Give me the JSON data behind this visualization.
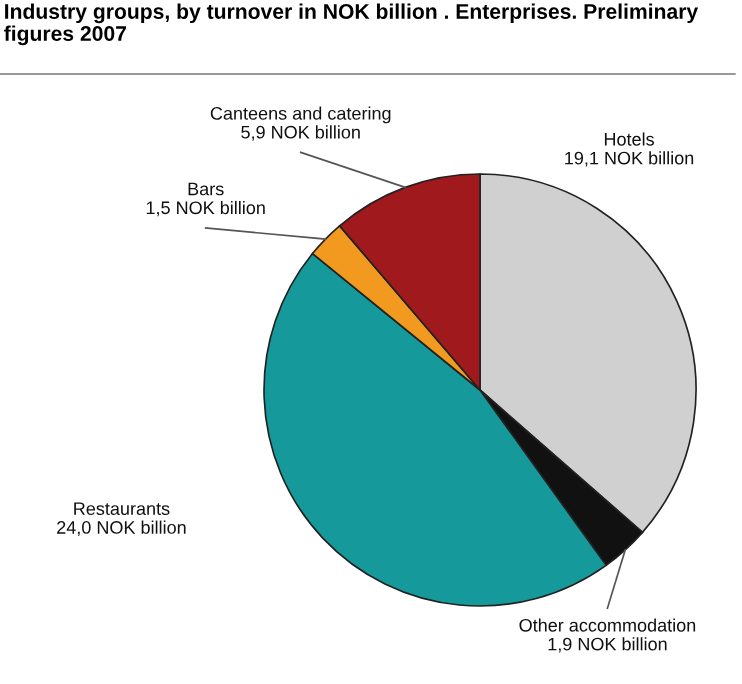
{
  "chart_data": {
    "type": "pie",
    "title": "Industry groups, by turnover in NOK billion . Enterprises. Preliminary figures 2007",
    "categories": [
      "Hotels",
      "Other accommodation",
      "Restaurants",
      "Bars",
      "Canteens and catering"
    ],
    "values": [
      19.1,
      1.9,
      24.0,
      1.5,
      5.9
    ],
    "value_labels": [
      "19,1 NOK billion",
      "1,9 NOK billion",
      "24,0 NOK billion",
      "1,5 NOK billion",
      "5,9 NOK billion"
    ],
    "colors": [
      "#d0d0d0",
      "#111111",
      "#16999a",
      "#f29a1f",
      "#a0191c"
    ]
  }
}
